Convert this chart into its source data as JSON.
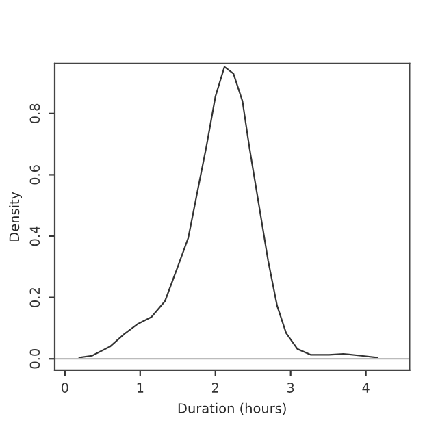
{
  "chart_data": {
    "type": "line",
    "xlabel": "Duration (hours)",
    "ylabel": "Density",
    "x": [
      0.19,
      0.36,
      0.6,
      0.79,
      0.97,
      1.15,
      1.33,
      1.51,
      1.64,
      1.76,
      1.88,
      2.0,
      2.12,
      2.24,
      2.36,
      2.45,
      2.58,
      2.7,
      2.82,
      2.94,
      3.09,
      3.27,
      3.51,
      3.7,
      3.94,
      4.15
    ],
    "series": [
      {
        "color": "#333333",
        "values": [
          0.004,
          0.01,
          0.04,
          0.081,
          0.114,
          0.136,
          0.188,
          0.307,
          0.395,
          0.544,
          0.692,
          0.855,
          0.952,
          0.93,
          0.84,
          0.692,
          0.499,
          0.321,
          0.173,
          0.084,
          0.032,
          0.013,
          0.013,
          0.016,
          0.01,
          0.004
        ]
      }
    ],
    "xlim": [
      -0.135,
      4.58
    ],
    "ylim": [
      -0.037,
      0.963
    ],
    "xticks": [
      0,
      1,
      2,
      3,
      4
    ],
    "yticks": [
      {
        "value": 0,
        "label": "0.0"
      },
      0.2,
      0.4,
      0.6,
      0.8
    ],
    "ref_lines": [
      {
        "axis": "y",
        "value": 0,
        "color": "#bbbbbb"
      }
    ],
    "grid": false,
    "legend": false,
    "marker": "none",
    "line_style": "solid"
  }
}
